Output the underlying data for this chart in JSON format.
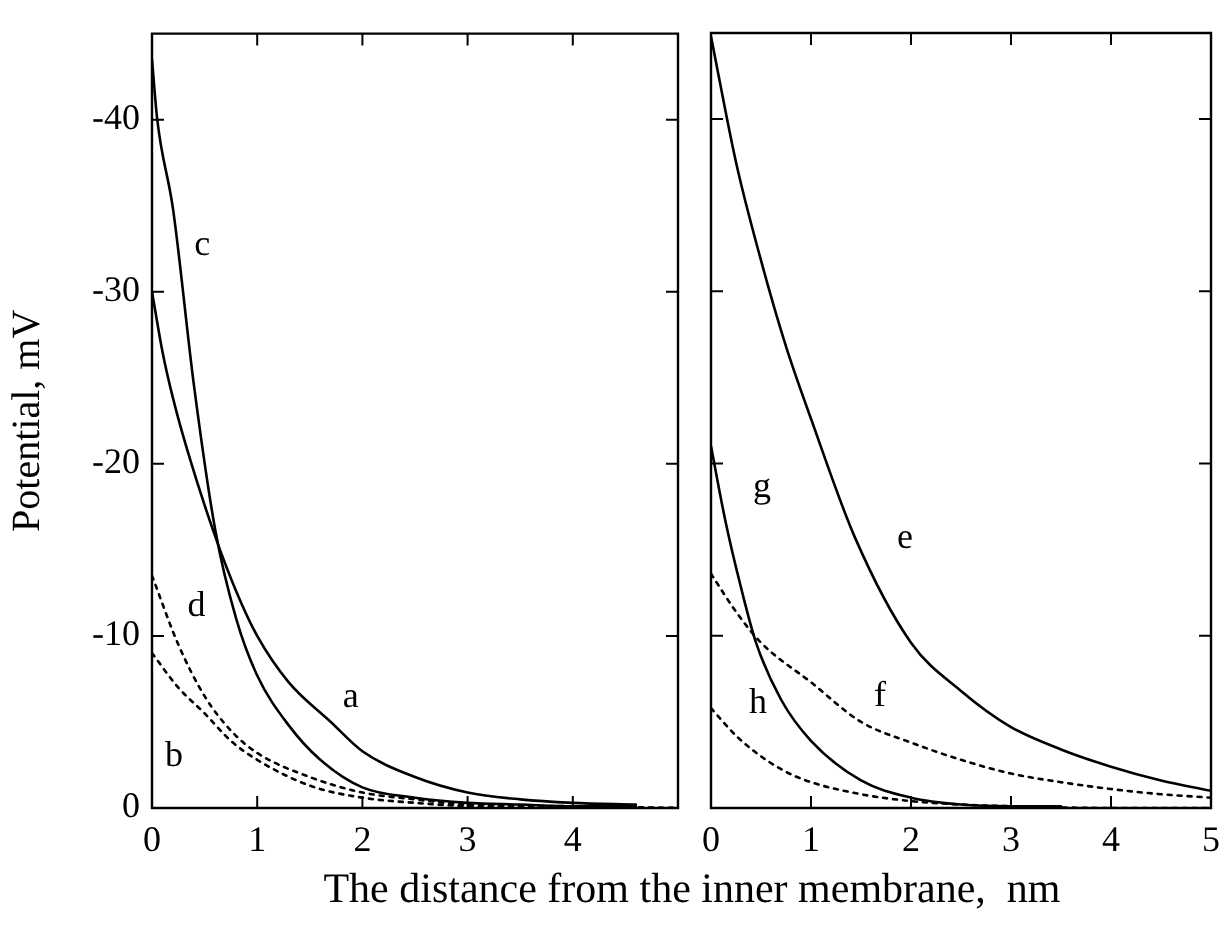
{
  "chart_data": [
    {
      "type": "line",
      "ylabel": "Potential, mV",
      "xlabel": "The distance from the inner membrane,  nm",
      "xlim": [
        0,
        5
      ],
      "xticks": [
        0,
        1,
        2,
        3,
        4,
        {
          "value": 5,
          "label": null
        }
      ],
      "ylim": [
        0,
        -45
      ],
      "yticks": [
        0,
        -10,
        -20,
        -30,
        -40
      ],
      "grid": false,
      "legend": false,
      "marker": "none",
      "series": [
        {
          "name": "a",
          "color": "#000000",
          "line_style": "solid",
          "x": [
            0,
            0.1,
            0.2,
            0.35,
            0.6,
            0.8,
            1,
            1.3,
            1.7,
            2,
            2.5,
            3,
            3.5,
            4,
            4.6
          ],
          "values": [
            -30,
            -26.5,
            -23.8,
            -20.5,
            -15.8,
            -12.6,
            -10,
            -7.3,
            -5,
            -3.3,
            -1.8,
            -0.9,
            -0.5,
            -0.3,
            -0.2
          ]
        },
        {
          "name": "b",
          "color": "#000000",
          "line_style": "dotted",
          "x": [
            0,
            0.25,
            0.5,
            0.75,
            1,
            1.5,
            2,
            2.5,
            3,
            4,
            5
          ],
          "values": [
            -9,
            -7,
            -5.5,
            -3.9,
            -2.8,
            -1.3,
            -0.6,
            -0.3,
            -0.1,
            0,
            0
          ]
        },
        {
          "name": "c",
          "color": "#000000",
          "line_style": "solid",
          "x": [
            0,
            0.05,
            0.2,
            0.4,
            0.6,
            0.8,
            1,
            1.3,
            1.6,
            2,
            2.5,
            3,
            3.5,
            4,
            4.6
          ],
          "values": [
            -43.5,
            -40,
            -34.8,
            -24.5,
            -16.2,
            -11,
            -7.7,
            -4.8,
            -2.8,
            -1.2,
            -0.6,
            -0.3,
            -0.2,
            -0.1,
            -0.1
          ]
        },
        {
          "name": "d",
          "color": "#000000",
          "line_style": "dotted",
          "x": [
            0,
            0.25,
            0.5,
            0.75,
            1,
            1.5,
            2,
            2.5,
            3,
            4,
            5
          ],
          "values": [
            -13.5,
            -9.5,
            -6.5,
            -4.5,
            -3.2,
            -1.8,
            -0.9,
            -0.5,
            -0.2,
            -0.1,
            0
          ]
        }
      ]
    },
    {
      "type": "line",
      "xlim": [
        0,
        5
      ],
      "xticks": [
        0,
        1,
        2,
        3,
        4,
        5
      ],
      "ylim": [
        0,
        -45
      ],
      "yticks": [
        0,
        -10,
        -20,
        -30,
        -40
      ],
      "tick_labels": "x",
      "grid": false,
      "legend": false,
      "marker": "none",
      "series": [
        {
          "name": "e",
          "color": "#000000",
          "line_style": "solid",
          "x": [
            0,
            0.25,
            0.5,
            0.75,
            1,
            1.44,
            2,
            2.5,
            3,
            3.5,
            4,
            4.5,
            5
          ],
          "values": [
            -44.8,
            -37.5,
            -31.8,
            -26.8,
            -22.6,
            -15.7,
            -9.6,
            -6.8,
            -4.7,
            -3.4,
            -2.4,
            -1.6,
            -1
          ]
        },
        {
          "name": "f",
          "color": "#000000",
          "line_style": "dotted",
          "x": [
            0,
            0.25,
            0.5,
            1,
            1.5,
            2,
            2.5,
            3,
            3.5,
            4,
            4.5,
            5
          ],
          "values": [
            -13.6,
            -11.4,
            -9.6,
            -7.3,
            -5,
            -3.8,
            -2.8,
            -2,
            -1.5,
            -1.1,
            -0.8,
            -0.6
          ]
        },
        {
          "name": "g",
          "color": "#000000",
          "line_style": "solid",
          "x": [
            0,
            0.15,
            0.3,
            0.45,
            0.7,
            1,
            1.5,
            2,
            2.5,
            3,
            3.5
          ],
          "values": [
            -21,
            -16.5,
            -12.8,
            -9.6,
            -6.3,
            -3.9,
            -1.6,
            -0.6,
            -0.2,
            -0.1,
            -0.1
          ]
        },
        {
          "name": "h",
          "color": "#000000",
          "line_style": "dotted",
          "x": [
            0,
            0.25,
            0.5,
            0.75,
            1,
            1.5,
            2,
            2.5,
            3,
            4,
            5
          ],
          "values": [
            -5.8,
            -4.2,
            -3,
            -2.1,
            -1.5,
            -0.8,
            -0.4,
            -0.2,
            -0.1,
            0,
            0
          ]
        }
      ]
    }
  ]
}
